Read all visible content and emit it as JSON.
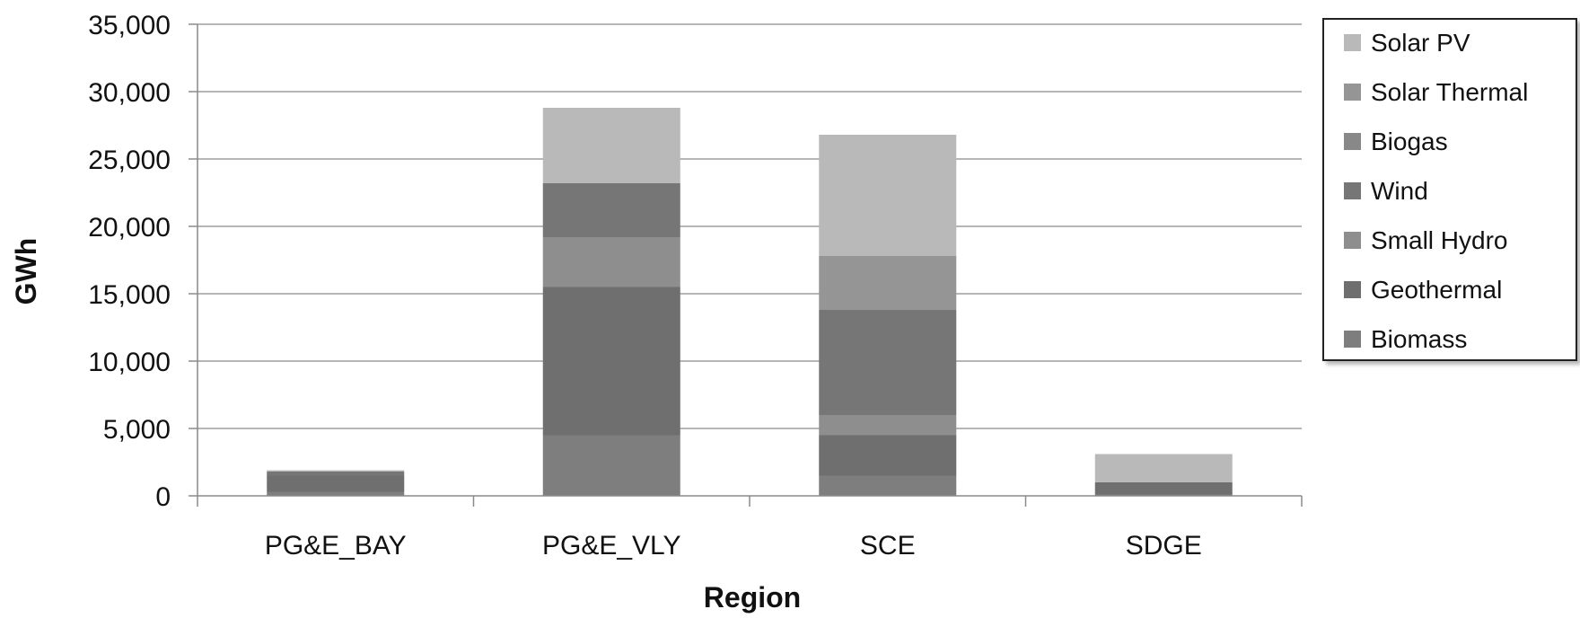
{
  "chart_data": {
    "type": "bar",
    "stacked": true,
    "xlabel": "Region",
    "ylabel": "GWh",
    "ylim": [
      0,
      35000
    ],
    "yticks": [
      0,
      5000,
      10000,
      15000,
      20000,
      25000,
      30000,
      35000
    ],
    "ytick_labels": [
      "0",
      "5,000",
      "10,000",
      "15,000",
      "20,000",
      "25,000",
      "30,000",
      "35,000"
    ],
    "grid": "horizontal",
    "legend_position": "right",
    "categories": [
      "PG&E_BAY",
      "PG&E_VLY",
      "SCE",
      "SDGE"
    ],
    "series": [
      {
        "name": "Biomass",
        "values": [
          300,
          4500,
          1500,
          100
        ],
        "color": "#7e7e7e"
      },
      {
        "name": "Geothermal",
        "values": [
          1200,
          11000,
          3000,
          900
        ],
        "color": "#6f6f6f"
      },
      {
        "name": "Small Hydro",
        "values": [
          0,
          3700,
          1500,
          0
        ],
        "color": "#8e8e8e"
      },
      {
        "name": "Wind",
        "values": [
          300,
          4000,
          7800,
          0
        ],
        "color": "#767676"
      },
      {
        "name": "Biogas",
        "values": [
          0,
          0,
          0,
          0
        ],
        "color": "#888888"
      },
      {
        "name": "Solar Thermal",
        "values": [
          0,
          0,
          4000,
          0
        ],
        "color": "#959595"
      },
      {
        "name": "Solar PV",
        "values": [
          100,
          5600,
          9000,
          2100
        ],
        "color": "#b9b9b9"
      }
    ],
    "legend_order": [
      "Solar PV",
      "Solar Thermal",
      "Biogas",
      "Wind",
      "Small Hydro",
      "Geothermal",
      "Biomass"
    ]
  }
}
